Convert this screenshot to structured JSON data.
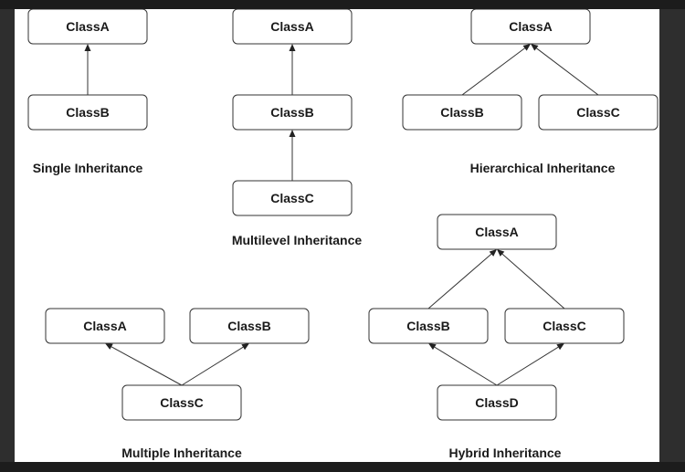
{
  "diagram": {
    "boxes": [
      {
        "id": "single-classA",
        "label": "ClassA"
      },
      {
        "id": "single-classB",
        "label": "ClassB"
      },
      {
        "id": "multi-classA",
        "label": "ClassA"
      },
      {
        "id": "multi-classB",
        "label": "ClassB"
      },
      {
        "id": "multi-classC",
        "label": "ClassC"
      },
      {
        "id": "hier-classA",
        "label": "ClassA"
      },
      {
        "id": "hier-classB",
        "label": "ClassB"
      },
      {
        "id": "hier-classC",
        "label": "ClassC"
      },
      {
        "id": "multiple-classA",
        "label": "ClassA"
      },
      {
        "id": "multiple-classB",
        "label": "ClassB"
      },
      {
        "id": "multiple-classC",
        "label": "ClassC"
      },
      {
        "id": "hybrid-classA",
        "label": "ClassA"
      },
      {
        "id": "hybrid-classB",
        "label": "ClassB"
      },
      {
        "id": "hybrid-classC",
        "label": "ClassC"
      },
      {
        "id": "hybrid-classD",
        "label": "ClassD"
      }
    ],
    "edges": [
      {
        "from": "single-classB",
        "to": "single-classA"
      },
      {
        "from": "multi-classB",
        "to": "multi-classA"
      },
      {
        "from": "multi-classC",
        "to": "multi-classB"
      },
      {
        "from": "hier-classB",
        "to": "hier-classA"
      },
      {
        "from": "hier-classC",
        "to": "hier-classA"
      },
      {
        "from": "multiple-classC",
        "to": "multiple-classA"
      },
      {
        "from": "multiple-classC",
        "to": "multiple-classB"
      },
      {
        "from": "hybrid-classB",
        "to": "hybrid-classA"
      },
      {
        "from": "hybrid-classC",
        "to": "hybrid-classA"
      },
      {
        "from": "hybrid-classD",
        "to": "hybrid-classB"
      },
      {
        "from": "hybrid-classD",
        "to": "hybrid-classC"
      }
    ],
    "captions": {
      "single": "Single Inheritance",
      "multilevel": "Multilevel Inheritance",
      "hierarchical": "Hierarchical Inheritance",
      "multiple": "Multiple Inheritance",
      "hybrid": "Hybrid Inheritance"
    },
    "colors": {
      "stroke": "#333333",
      "text": "#1a1a1a",
      "background": "#ffffff"
    }
  }
}
